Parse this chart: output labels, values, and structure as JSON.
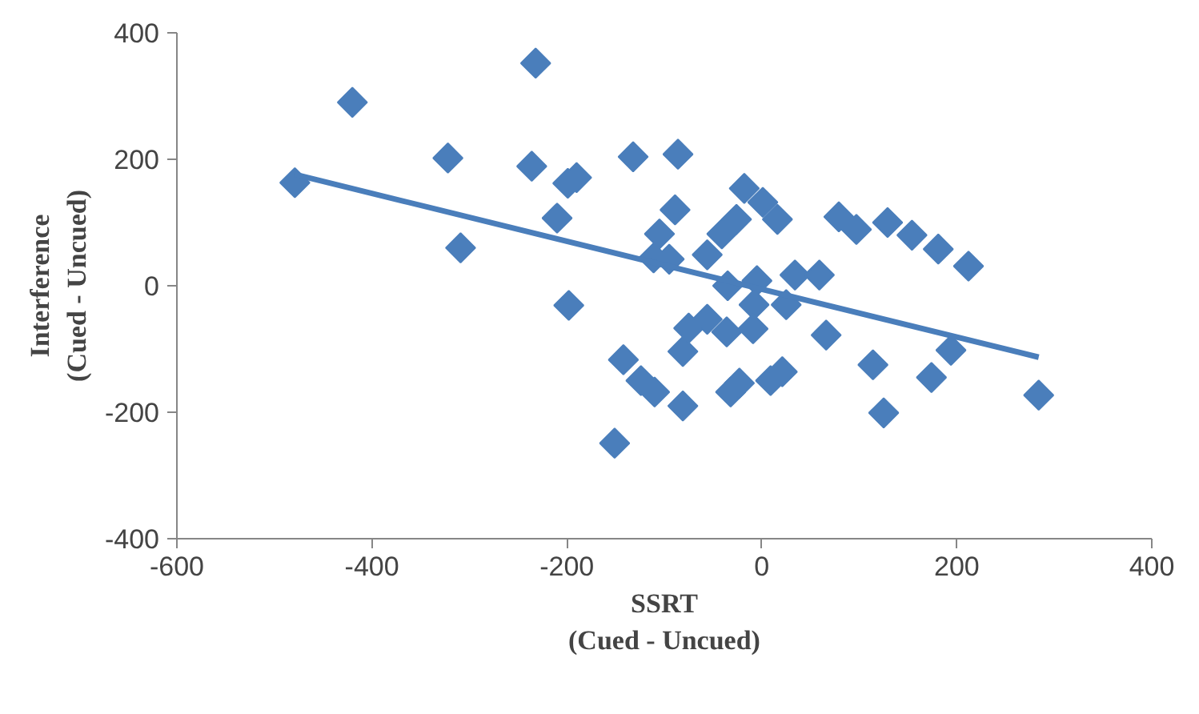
{
  "chart_data": {
    "type": "scatter",
    "xlabel": "SSRT\n(Cued - Uncued)",
    "ylabel": "Interference\n(Cued - Uncued)",
    "xlim": [
      -600,
      400
    ],
    "xticks": [
      -600,
      -400,
      -200,
      0,
      200,
      400
    ],
    "ylim": [
      -400,
      400
    ],
    "yticks": [
      -400,
      -200,
      0,
      200,
      400
    ],
    "grid": false,
    "marker": "diamond",
    "series": [
      {
        "color": "#4a7ebb",
        "x": [
          -479,
          -420,
          -232,
          -322,
          -236,
          -190,
          -199,
          -210,
          -309,
          -132,
          -86,
          -198,
          -89,
          -105,
          -111,
          -95,
          -142,
          -124,
          -110,
          -151,
          -81,
          -81,
          -18,
          1,
          16,
          -26,
          -41,
          -56,
          -35,
          -5,
          -8,
          25,
          34,
          59,
          79,
          97,
          129,
          154,
          181,
          212,
          -56,
          -75,
          -36,
          -9,
          66,
          114,
          194,
          174,
          125,
          284,
          -32,
          -23,
          9,
          21
        ],
        "values": [
          163,
          290,
          352,
          202,
          189,
          171,
          162,
          107,
          60,
          204,
          208,
          -31,
          120,
          82,
          44,
          42,
          -117,
          -150,
          -168,
          -249,
          -190,
          -104,
          154,
          132,
          105,
          105,
          82,
          49,
          0,
          8,
          -30,
          -30,
          17,
          17,
          109,
          89,
          100,
          80,
          58,
          31,
          -53,
          -67,
          -73,
          -68,
          -78,
          -125,
          -102,
          -145,
          -201,
          -173,
          -168,
          -154,
          -150,
          -136
        ]
      },
      {
        "type": "line",
        "marker": "none",
        "color": "#4a7ebb",
        "x": [
          -479,
          284
        ],
        "values": [
          176,
          -113
        ]
      }
    ]
  }
}
